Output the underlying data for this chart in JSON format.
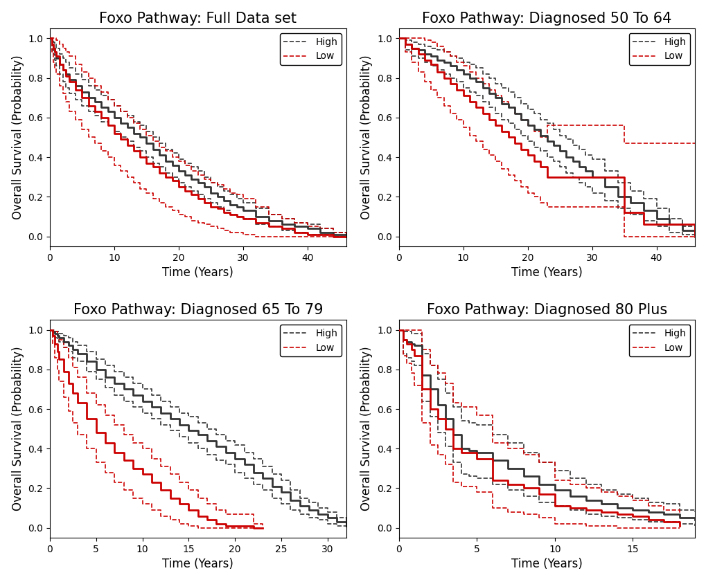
{
  "panels": [
    {
      "title": "Foxo Pathway: Full Data set",
      "xlim": [
        0,
        46
      ],
      "ylim": [
        -0.05,
        1.05
      ],
      "xticks": [
        0,
        10,
        20,
        30,
        40
      ],
      "yticks": [
        0.0,
        0.2,
        0.4,
        0.6,
        0.8,
        1.0
      ],
      "high": {
        "t": [
          0,
          0.3,
          0.5,
          0.8,
          1,
          1.5,
          2,
          2.5,
          3,
          4,
          5,
          6,
          7,
          8,
          9,
          10,
          11,
          12,
          13,
          14,
          15,
          16,
          17,
          18,
          19,
          20,
          21,
          22,
          23,
          24,
          25,
          26,
          27,
          28,
          29,
          30,
          32,
          34,
          36,
          38,
          40,
          42,
          44,
          46
        ],
        "surv": [
          1.0,
          0.97,
          0.95,
          0.93,
          0.9,
          0.87,
          0.84,
          0.82,
          0.79,
          0.76,
          0.73,
          0.7,
          0.68,
          0.65,
          0.63,
          0.6,
          0.57,
          0.55,
          0.52,
          0.5,
          0.47,
          0.44,
          0.41,
          0.38,
          0.36,
          0.33,
          0.31,
          0.29,
          0.27,
          0.25,
          0.22,
          0.2,
          0.18,
          0.16,
          0.15,
          0.13,
          0.1,
          0.08,
          0.06,
          0.05,
          0.04,
          0.02,
          0.01,
          0.0
        ],
        "upper": [
          1.0,
          0.99,
          0.98,
          0.97,
          0.95,
          0.92,
          0.9,
          0.88,
          0.85,
          0.82,
          0.79,
          0.76,
          0.74,
          0.71,
          0.69,
          0.66,
          0.63,
          0.61,
          0.58,
          0.56,
          0.53,
          0.5,
          0.47,
          0.44,
          0.42,
          0.39,
          0.37,
          0.35,
          0.33,
          0.3,
          0.27,
          0.25,
          0.23,
          0.21,
          0.19,
          0.17,
          0.14,
          0.11,
          0.09,
          0.07,
          0.06,
          0.04,
          0.02,
          0.01
        ],
        "lower": [
          1.0,
          0.94,
          0.92,
          0.89,
          0.86,
          0.82,
          0.78,
          0.75,
          0.72,
          0.69,
          0.66,
          0.63,
          0.61,
          0.58,
          0.56,
          0.53,
          0.5,
          0.48,
          0.45,
          0.43,
          0.4,
          0.37,
          0.35,
          0.32,
          0.3,
          0.27,
          0.25,
          0.23,
          0.21,
          0.19,
          0.17,
          0.15,
          0.13,
          0.11,
          0.1,
          0.09,
          0.06,
          0.05,
          0.03,
          0.02,
          0.01,
          0.01,
          0.0,
          0.0
        ]
      },
      "low": {
        "t": [
          0,
          0.3,
          0.5,
          0.8,
          1,
          1.5,
          2,
          2.5,
          3,
          4,
          5,
          6,
          7,
          8,
          9,
          10,
          11,
          12,
          13,
          14,
          15,
          16,
          17,
          18,
          19,
          20,
          21,
          22,
          23,
          24,
          25,
          26,
          27,
          28,
          29,
          30,
          32,
          34,
          36,
          38,
          40,
          42,
          44,
          46
        ],
        "surv": [
          1.0,
          0.97,
          0.95,
          0.93,
          0.91,
          0.87,
          0.84,
          0.81,
          0.78,
          0.74,
          0.7,
          0.66,
          0.63,
          0.6,
          0.56,
          0.52,
          0.49,
          0.46,
          0.43,
          0.4,
          0.37,
          0.35,
          0.32,
          0.3,
          0.28,
          0.25,
          0.23,
          0.21,
          0.19,
          0.17,
          0.15,
          0.14,
          0.12,
          0.11,
          0.1,
          0.09,
          0.07,
          0.05,
          0.04,
          0.02,
          0.01,
          0.01,
          0.0,
          0.0
        ],
        "upper": [
          1.0,
          1.0,
          1.0,
          1.0,
          0.99,
          0.97,
          0.95,
          0.93,
          0.91,
          0.87,
          0.83,
          0.8,
          0.76,
          0.73,
          0.69,
          0.66,
          0.63,
          0.6,
          0.57,
          0.54,
          0.51,
          0.48,
          0.45,
          0.43,
          0.4,
          0.38,
          0.36,
          0.33,
          0.31,
          0.29,
          0.27,
          0.26,
          0.24,
          0.22,
          0.21,
          0.19,
          0.15,
          0.11,
          0.09,
          0.07,
          0.05,
          0.04,
          0.02,
          0.01
        ],
        "lower": [
          1.0,
          0.93,
          0.88,
          0.85,
          0.82,
          0.76,
          0.72,
          0.68,
          0.63,
          0.59,
          0.54,
          0.5,
          0.47,
          0.43,
          0.4,
          0.36,
          0.33,
          0.3,
          0.27,
          0.24,
          0.22,
          0.19,
          0.17,
          0.15,
          0.13,
          0.11,
          0.1,
          0.08,
          0.07,
          0.06,
          0.05,
          0.04,
          0.03,
          0.02,
          0.02,
          0.01,
          0.0,
          0.0,
          0.0,
          0.0,
          0.0,
          0.0,
          0.0,
          0.0
        ]
      }
    },
    {
      "title": "Foxo Pathway: Diagnosed 50 To 64",
      "xlim": [
        0,
        46
      ],
      "ylim": [
        -0.05,
        1.05
      ],
      "xticks": [
        0,
        10,
        20,
        30,
        40
      ],
      "yticks": [
        0.0,
        0.2,
        0.4,
        0.6,
        0.8,
        1.0
      ],
      "high": {
        "t": [
          0,
          1,
          2,
          3,
          4,
          5,
          6,
          7,
          8,
          9,
          10,
          11,
          12,
          13,
          14,
          15,
          16,
          17,
          18,
          19,
          20,
          21,
          22,
          23,
          24,
          25,
          26,
          27,
          28,
          29,
          30,
          32,
          34,
          36,
          38,
          40,
          42,
          44,
          46
        ],
        "surv": [
          1.0,
          0.97,
          0.95,
          0.94,
          0.92,
          0.91,
          0.89,
          0.88,
          0.86,
          0.84,
          0.82,
          0.8,
          0.78,
          0.75,
          0.72,
          0.7,
          0.67,
          0.65,
          0.62,
          0.59,
          0.56,
          0.54,
          0.51,
          0.48,
          0.46,
          0.43,
          0.4,
          0.38,
          0.35,
          0.33,
          0.3,
          0.25,
          0.2,
          0.17,
          0.13,
          0.09,
          0.06,
          0.03,
          0.01
        ],
        "upper": [
          1.0,
          0.99,
          0.98,
          0.97,
          0.96,
          0.95,
          0.94,
          0.93,
          0.91,
          0.9,
          0.88,
          0.87,
          0.85,
          0.82,
          0.8,
          0.77,
          0.75,
          0.73,
          0.7,
          0.67,
          0.64,
          0.62,
          0.59,
          0.57,
          0.54,
          0.51,
          0.49,
          0.46,
          0.44,
          0.41,
          0.39,
          0.33,
          0.27,
          0.23,
          0.19,
          0.14,
          0.09,
          0.05,
          0.02
        ],
        "lower": [
          1.0,
          0.94,
          0.91,
          0.9,
          0.88,
          0.86,
          0.84,
          0.82,
          0.8,
          0.78,
          0.75,
          0.73,
          0.71,
          0.68,
          0.65,
          0.62,
          0.59,
          0.57,
          0.54,
          0.51,
          0.48,
          0.45,
          0.43,
          0.4,
          0.38,
          0.35,
          0.32,
          0.3,
          0.27,
          0.25,
          0.22,
          0.18,
          0.14,
          0.11,
          0.08,
          0.05,
          0.02,
          0.01,
          0.0
        ]
      },
      "low": {
        "t": [
          0,
          1,
          2,
          3,
          4,
          5,
          6,
          7,
          8,
          9,
          10,
          11,
          12,
          13,
          14,
          15,
          16,
          17,
          18,
          19,
          20,
          21,
          22,
          23,
          24,
          25,
          26,
          27,
          28,
          30,
          35,
          38,
          46
        ],
        "surv": [
          1.0,
          0.97,
          0.95,
          0.92,
          0.89,
          0.87,
          0.83,
          0.8,
          0.77,
          0.74,
          0.71,
          0.68,
          0.65,
          0.62,
          0.59,
          0.56,
          0.53,
          0.5,
          0.47,
          0.44,
          0.41,
          0.38,
          0.35,
          0.3,
          0.3,
          0.3,
          0.3,
          0.3,
          0.3,
          0.3,
          0.12,
          0.06,
          0.0
        ],
        "upper": [
          1.0,
          1.0,
          1.0,
          1.0,
          0.99,
          0.98,
          0.96,
          0.93,
          0.91,
          0.88,
          0.86,
          0.83,
          0.8,
          0.77,
          0.74,
          0.71,
          0.68,
          0.65,
          0.62,
          0.59,
          0.56,
          0.53,
          0.5,
          0.56,
          0.56,
          0.56,
          0.56,
          0.56,
          0.56,
          0.56,
          0.47,
          0.47,
          0.47
        ],
        "lower": [
          1.0,
          0.93,
          0.88,
          0.83,
          0.78,
          0.74,
          0.7,
          0.66,
          0.62,
          0.59,
          0.55,
          0.51,
          0.48,
          0.44,
          0.41,
          0.38,
          0.34,
          0.31,
          0.28,
          0.25,
          0.22,
          0.2,
          0.17,
          0.15,
          0.15,
          0.15,
          0.15,
          0.15,
          0.15,
          0.15,
          0.0,
          0.0,
          0.0
        ]
      }
    },
    {
      "title": "Foxo Pathway: Diagnosed 65 To 79",
      "xlim": [
        0,
        32
      ],
      "ylim": [
        -0.05,
        1.05
      ],
      "xticks": [
        0,
        5,
        10,
        15,
        20,
        25,
        30
      ],
      "yticks": [
        0.0,
        0.2,
        0.4,
        0.6,
        0.8,
        1.0
      ],
      "high": {
        "t": [
          0,
          0.3,
          0.5,
          0.8,
          1,
          1.5,
          2,
          2.5,
          3,
          4,
          5,
          6,
          7,
          8,
          9,
          10,
          11,
          12,
          13,
          14,
          15,
          16,
          17,
          18,
          19,
          20,
          21,
          22,
          23,
          24,
          25,
          26,
          27,
          28,
          29,
          30,
          31,
          32
        ],
        "surv": [
          1.0,
          0.99,
          0.98,
          0.97,
          0.96,
          0.94,
          0.92,
          0.9,
          0.88,
          0.84,
          0.8,
          0.76,
          0.73,
          0.7,
          0.67,
          0.64,
          0.61,
          0.58,
          0.55,
          0.52,
          0.49,
          0.47,
          0.44,
          0.41,
          0.38,
          0.35,
          0.32,
          0.28,
          0.25,
          0.21,
          0.18,
          0.14,
          0.11,
          0.09,
          0.07,
          0.05,
          0.03,
          0.01
        ],
        "upper": [
          1.0,
          1.0,
          0.99,
          0.99,
          0.98,
          0.97,
          0.96,
          0.94,
          0.92,
          0.89,
          0.85,
          0.82,
          0.79,
          0.76,
          0.73,
          0.7,
          0.67,
          0.64,
          0.61,
          0.58,
          0.56,
          0.53,
          0.5,
          0.47,
          0.44,
          0.42,
          0.38,
          0.35,
          0.31,
          0.27,
          0.24,
          0.19,
          0.15,
          0.13,
          0.1,
          0.08,
          0.05,
          0.02
        ],
        "lower": [
          1.0,
          0.97,
          0.96,
          0.95,
          0.94,
          0.91,
          0.89,
          0.86,
          0.84,
          0.79,
          0.75,
          0.71,
          0.67,
          0.64,
          0.61,
          0.58,
          0.55,
          0.52,
          0.49,
          0.46,
          0.43,
          0.4,
          0.37,
          0.34,
          0.32,
          0.28,
          0.25,
          0.22,
          0.19,
          0.15,
          0.12,
          0.09,
          0.07,
          0.05,
          0.04,
          0.02,
          0.01,
          0.0
        ]
      },
      "low": {
        "t": [
          0,
          0.3,
          0.5,
          0.8,
          1,
          1.5,
          2,
          2.5,
          3,
          4,
          5,
          6,
          7,
          8,
          9,
          10,
          11,
          12,
          13,
          14,
          15,
          16,
          17,
          18,
          19,
          20,
          21,
          22,
          23
        ],
        "surv": [
          1.0,
          0.97,
          0.93,
          0.89,
          0.85,
          0.79,
          0.73,
          0.68,
          0.63,
          0.55,
          0.48,
          0.43,
          0.38,
          0.34,
          0.3,
          0.27,
          0.23,
          0.19,
          0.15,
          0.12,
          0.09,
          0.06,
          0.04,
          0.02,
          0.01,
          0.01,
          0.01,
          0.0,
          0.0
        ],
        "upper": [
          1.0,
          1.0,
          0.99,
          0.97,
          0.95,
          0.91,
          0.86,
          0.81,
          0.76,
          0.68,
          0.62,
          0.57,
          0.52,
          0.47,
          0.43,
          0.4,
          0.35,
          0.31,
          0.27,
          0.23,
          0.19,
          0.15,
          0.12,
          0.09,
          0.07,
          0.07,
          0.07,
          0.02,
          0.01
        ],
        "lower": [
          1.0,
          0.93,
          0.86,
          0.8,
          0.74,
          0.66,
          0.59,
          0.53,
          0.47,
          0.4,
          0.33,
          0.28,
          0.23,
          0.19,
          0.15,
          0.12,
          0.09,
          0.06,
          0.04,
          0.02,
          0.01,
          0.0,
          0.0,
          0.0,
          0.0,
          0.0,
          0.0,
          0.0,
          0.0
        ]
      }
    },
    {
      "title": "Foxo Pathway: Diagnosed 80 Plus",
      "xlim": [
        0,
        19
      ],
      "ylim": [
        -0.05,
        1.05
      ],
      "xticks": [
        0,
        5,
        10,
        15
      ],
      "yticks": [
        0.0,
        0.2,
        0.4,
        0.6,
        0.8,
        1.0
      ],
      "high": {
        "t": [
          0,
          0.3,
          0.5,
          0.8,
          1,
          1.5,
          2,
          2.5,
          3,
          3.5,
          4,
          4.5,
          5,
          6,
          7,
          8,
          9,
          10,
          11,
          12,
          13,
          14,
          15,
          16,
          17,
          18,
          19
        ],
        "surv": [
          1.0,
          0.95,
          0.94,
          0.93,
          0.92,
          0.77,
          0.7,
          0.62,
          0.55,
          0.47,
          0.4,
          0.39,
          0.38,
          0.34,
          0.3,
          0.26,
          0.22,
          0.19,
          0.16,
          0.14,
          0.12,
          0.1,
          0.09,
          0.08,
          0.07,
          0.05,
          0.04
        ],
        "upper": [
          1.0,
          0.99,
          0.99,
          0.98,
          0.98,
          0.88,
          0.82,
          0.75,
          0.68,
          0.61,
          0.54,
          0.53,
          0.52,
          0.47,
          0.43,
          0.38,
          0.33,
          0.29,
          0.25,
          0.22,
          0.19,
          0.17,
          0.15,
          0.13,
          0.12,
          0.09,
          0.08
        ],
        "lower": [
          1.0,
          0.88,
          0.86,
          0.84,
          0.82,
          0.64,
          0.56,
          0.48,
          0.41,
          0.33,
          0.27,
          0.26,
          0.25,
          0.22,
          0.19,
          0.16,
          0.13,
          0.11,
          0.09,
          0.07,
          0.06,
          0.05,
          0.04,
          0.03,
          0.03,
          0.02,
          0.01
        ]
      },
      "low": {
        "t": [
          0,
          0.3,
          0.5,
          0.8,
          1,
          1.5,
          2,
          2.5,
          3,
          3.5,
          4,
          5,
          6,
          7,
          8,
          9,
          10,
          11,
          12,
          13,
          14,
          15,
          16,
          17,
          18
        ],
        "surv": [
          1.0,
          0.95,
          0.93,
          0.9,
          0.87,
          0.7,
          0.6,
          0.55,
          0.5,
          0.4,
          0.38,
          0.35,
          0.24,
          0.22,
          0.2,
          0.17,
          0.11,
          0.1,
          0.09,
          0.08,
          0.07,
          0.06,
          0.04,
          0.03,
          0.01
        ],
        "upper": [
          1.0,
          1.0,
          1.0,
          1.0,
          1.0,
          0.9,
          0.82,
          0.78,
          0.73,
          0.63,
          0.61,
          0.57,
          0.43,
          0.4,
          0.37,
          0.33,
          0.24,
          0.22,
          0.2,
          0.18,
          0.16,
          0.14,
          0.11,
          0.09,
          0.06
        ],
        "lower": [
          1.0,
          0.87,
          0.83,
          0.78,
          0.72,
          0.53,
          0.42,
          0.37,
          0.32,
          0.23,
          0.21,
          0.18,
          0.1,
          0.08,
          0.07,
          0.05,
          0.02,
          0.02,
          0.01,
          0.01,
          0.0,
          0.0,
          0.0,
          0.0,
          0.0
        ]
      }
    }
  ],
  "high_color": "#333333",
  "low_color": "#cc0000",
  "solid_lw": 2.0,
  "dash_lw": 1.2,
  "title_fontsize": 15,
  "axis_label_fontsize": 12,
  "tick_fontsize": 10,
  "legend_fontsize": 10,
  "xlabel": "Time (Years)",
  "ylabel": "Overall Survival (Probability)"
}
